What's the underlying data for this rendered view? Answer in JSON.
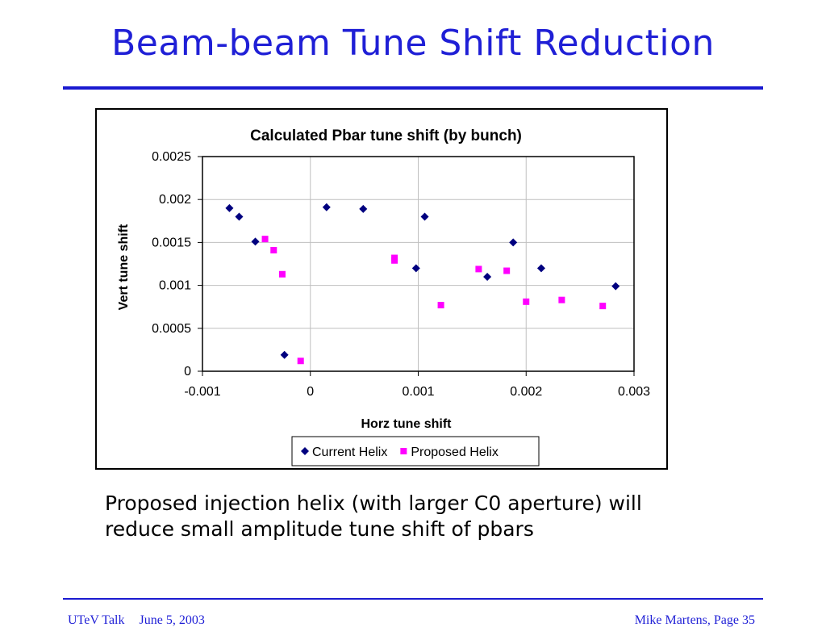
{
  "slide": {
    "title": "Beam-beam Tune Shift Reduction",
    "body_line1": "Proposed injection helix (with larger C0 aperture) will",
    "body_line2": "reduce small amplitude tune shift of pbars"
  },
  "footer": {
    "talk": "UTeV Talk",
    "date": "June 5, 2003",
    "author_page": "Mike Martens, Page 35"
  },
  "colors": {
    "accent": "#1f1fd6",
    "current_series": "#00007f",
    "proposed_series": "#ff00ff"
  },
  "chart_data": {
    "type": "scatter",
    "title": "Calculated Pbar tune shift (by bunch)",
    "xlabel": "Horz tune shift",
    "ylabel": "Vert tune shift",
    "xlim": [
      -0.001,
      0.003
    ],
    "ylim": [
      0,
      0.0025
    ],
    "xticks": [
      "-0.001",
      "0",
      "0.001",
      "0.002",
      "0.003"
    ],
    "yticks": [
      "0",
      "0.0005",
      "0.001",
      "0.0015",
      "0.002",
      "0.0025"
    ],
    "grid": true,
    "legend_position": "bottom",
    "series": [
      {
        "name": "Current Helix",
        "marker": "diamond",
        "color": "#00007f",
        "points": [
          [
            -0.00075,
            0.0019
          ],
          [
            -0.00066,
            0.0018
          ],
          [
            -0.00051,
            0.00151
          ],
          [
            -0.00024,
            0.00019
          ],
          [
            0.00015,
            0.00191
          ],
          [
            0.00049,
            0.00189
          ],
          [
            0.00098,
            0.0012
          ],
          [
            0.00106,
            0.0018
          ],
          [
            0.00164,
            0.0011
          ],
          [
            0.00188,
            0.0015
          ],
          [
            0.00214,
            0.0012
          ],
          [
            0.00283,
            0.00099
          ]
        ]
      },
      {
        "name": "Proposed Helix",
        "marker": "square",
        "color": "#ff00ff",
        "points": [
          [
            -0.00042,
            0.00154
          ],
          [
            -0.00034,
            0.00141
          ],
          [
            -0.00026,
            0.00113
          ],
          [
            -9e-05,
            0.00012
          ],
          [
            0.00078,
            0.00132
          ],
          [
            0.00078,
            0.00129
          ],
          [
            0.00121,
            0.00077
          ],
          [
            0.00156,
            0.00119
          ],
          [
            0.00182,
            0.00117
          ],
          [
            0.002,
            0.00081
          ],
          [
            0.00233,
            0.00083
          ],
          [
            0.00271,
            0.00076
          ]
        ]
      }
    ]
  }
}
